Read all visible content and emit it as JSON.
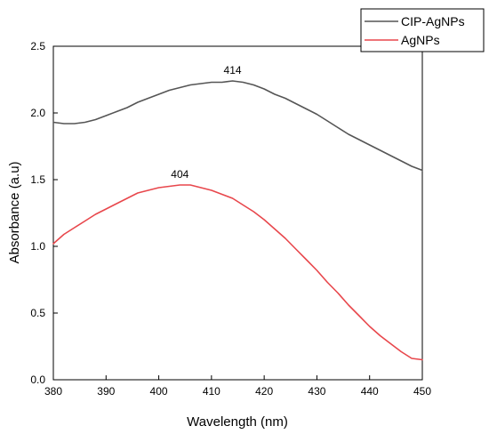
{
  "chart_data": {
    "type": "line",
    "xlabel": "Wavelength (nm)",
    "ylabel": "Absorbance (a.u)",
    "xlim": [
      380,
      450
    ],
    "ylim": [
      0.0,
      2.5
    ],
    "xticks": [
      380,
      390,
      400,
      410,
      420,
      430,
      440,
      450
    ],
    "yticks": [
      0.0,
      0.5,
      1.0,
      1.5,
      2.0,
      2.5
    ],
    "xtick_labels": [
      "380",
      "390",
      "400",
      "410",
      "420",
      "430",
      "440",
      "450"
    ],
    "ytick_labels": [
      "0.0",
      "0.5",
      "1.0",
      "1.5",
      "2.0",
      "2.5"
    ],
    "grid": false,
    "legend_position": "top-right",
    "series": [
      {
        "name": "CIP-AgNPs",
        "color": "#555555",
        "x": [
          380,
          382,
          384,
          386,
          388,
          390,
          392,
          394,
          396,
          398,
          400,
          402,
          404,
          406,
          408,
          410,
          412,
          414,
          416,
          418,
          420,
          422,
          424,
          426,
          428,
          430,
          432,
          434,
          436,
          438,
          440,
          442,
          444,
          446,
          448,
          450
        ],
        "y": [
          1.93,
          1.92,
          1.92,
          1.93,
          1.95,
          1.98,
          2.01,
          2.04,
          2.08,
          2.11,
          2.14,
          2.17,
          2.19,
          2.21,
          2.22,
          2.23,
          2.23,
          2.24,
          2.23,
          2.21,
          2.18,
          2.14,
          2.11,
          2.07,
          2.03,
          1.99,
          1.94,
          1.89,
          1.84,
          1.8,
          1.76,
          1.72,
          1.68,
          1.64,
          1.6,
          1.57
        ]
      },
      {
        "name": "AgNPs",
        "color": "#e8474c",
        "x": [
          380,
          382,
          384,
          386,
          388,
          390,
          392,
          394,
          396,
          398,
          400,
          402,
          404,
          406,
          408,
          410,
          412,
          414,
          416,
          418,
          420,
          422,
          424,
          426,
          428,
          430,
          432,
          434,
          436,
          438,
          440,
          442,
          444,
          446,
          448,
          450
        ],
        "y": [
          1.02,
          1.09,
          1.14,
          1.19,
          1.24,
          1.28,
          1.32,
          1.36,
          1.4,
          1.42,
          1.44,
          1.45,
          1.46,
          1.46,
          1.44,
          1.42,
          1.39,
          1.36,
          1.31,
          1.26,
          1.2,
          1.13,
          1.06,
          0.98,
          0.9,
          0.82,
          0.73,
          0.65,
          0.56,
          0.48,
          0.4,
          0.33,
          0.27,
          0.21,
          0.16,
          0.15
        ]
      }
    ],
    "annotations": [
      {
        "text": "414",
        "x": 414,
        "y": 2.24
      },
      {
        "text": "404",
        "x": 404,
        "y": 1.46
      }
    ]
  }
}
